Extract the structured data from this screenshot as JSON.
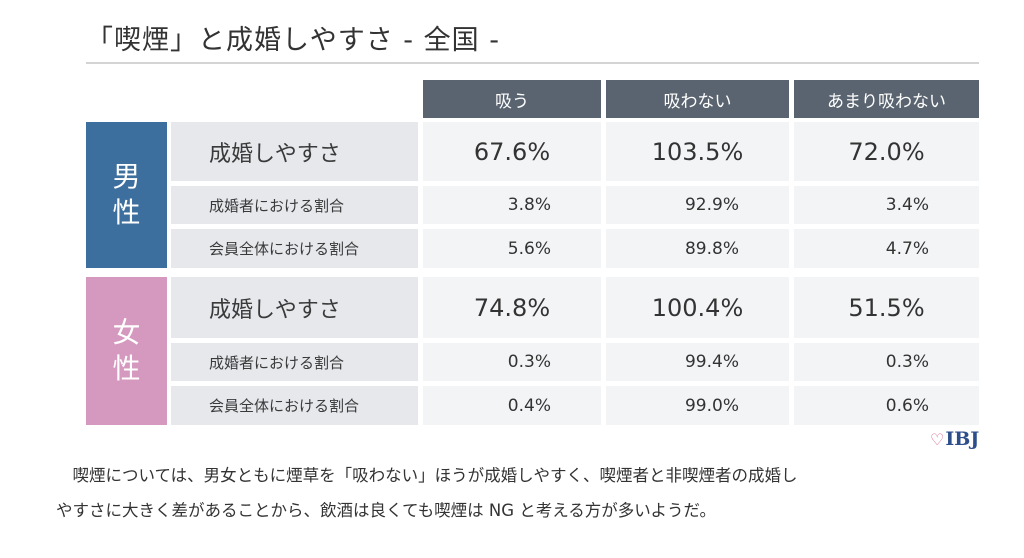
{
  "title": "「喫煙」と成婚しやすさ - 全国 -",
  "columns": [
    "吸う",
    "吸わない",
    "あまり吸わない"
  ],
  "male": {
    "label_line1": "男",
    "label_line2": "性",
    "rows": [
      {
        "label": "成婚しやすさ",
        "values": [
          "67.6%",
          "103.5%",
          "72.0%"
        ]
      },
      {
        "label": "成婚者における割合",
        "values": [
          "3.8%",
          "92.9%",
          "3.4%"
        ]
      },
      {
        "label": "会員全体における割合",
        "values": [
          "5.6%",
          "89.8%",
          "4.7%"
        ]
      }
    ]
  },
  "female": {
    "label_line1": "女",
    "label_line2": "性",
    "rows": [
      {
        "label": "成婚しやすさ",
        "values": [
          "74.8%",
          "100.4%",
          "51.5%"
        ]
      },
      {
        "label": "成婚者における割合",
        "values": [
          "0.3%",
          "99.4%",
          "0.3%"
        ]
      },
      {
        "label": "会員全体における割合",
        "values": [
          "0.4%",
          "99.0%",
          "0.6%"
        ]
      }
    ]
  },
  "logo": {
    "text": "IBJ",
    "icon": "heart-icon",
    "color": "#2d4e8a",
    "accent": "#d56b8a"
  },
  "paragraph": {
    "line1": "喫煙については、男女ともに煙草を「吸わない」ほうが成婚しやすく、喫煙者と非喫煙者の成婚し",
    "line2": "やすさに大きく差があることから、飲酒は良くても喫煙は NG と考える方が多いようだ。"
  },
  "colors": {
    "male": "#3d6f9e",
    "female": "#d598be",
    "header": "#5a6470"
  }
}
